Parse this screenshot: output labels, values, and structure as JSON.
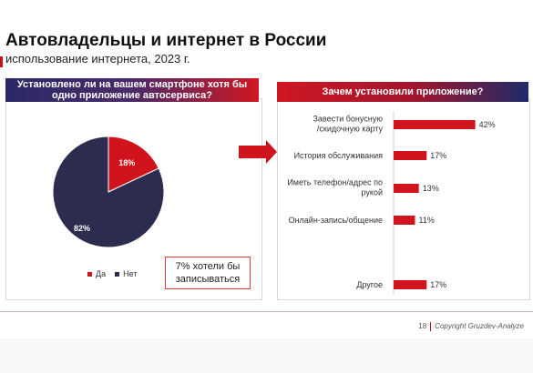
{
  "header": {
    "title": "Автовладельцы и интернет в России",
    "subtitle": "использование интернета, 2023 г."
  },
  "left_panel": {
    "question_line1": "Установлено ли на вашем смартфоне хотя бы",
    "question_line2": "одно приложение автосервиса?",
    "note_line1": "7% хотели бы",
    "note_line2": "записываться"
  },
  "right_panel": {
    "question": "Зачем установили приложение?"
  },
  "footer": {
    "page": "18",
    "copyright": "Copyright Gruzdev-Analyze"
  },
  "colors": {
    "red": "#d0141e",
    "navy": "#2c2c4e"
  },
  "chart_data": [
    {
      "type": "pie",
      "slices": [
        {
          "label": "Да",
          "value": 18,
          "value_label": "18%",
          "color": "#d0141e"
        },
        {
          "label": "Нет",
          "value": 82,
          "value_label": "82%",
          "color": "#2c2c4e"
        }
      ],
      "legend_placement": "bottom"
    },
    {
      "type": "bar",
      "orientation": "horizontal",
      "categories": [
        [
          "Завести бонусную",
          "/скидочную карту"
        ],
        [
          "История обслуживания"
        ],
        [
          "Иметь телефон/адрес по",
          "рукой"
        ],
        [
          "Онлайн-запись/общение"
        ],
        [
          "Другое"
        ]
      ],
      "values": [
        42,
        17,
        13,
        11,
        17
      ],
      "value_labels": [
        "42%",
        "17%",
        "13%",
        "11%",
        "17%"
      ],
      "xlim": [
        0,
        45
      ],
      "color": "#d0141e",
      "grid": false
    }
  ]
}
